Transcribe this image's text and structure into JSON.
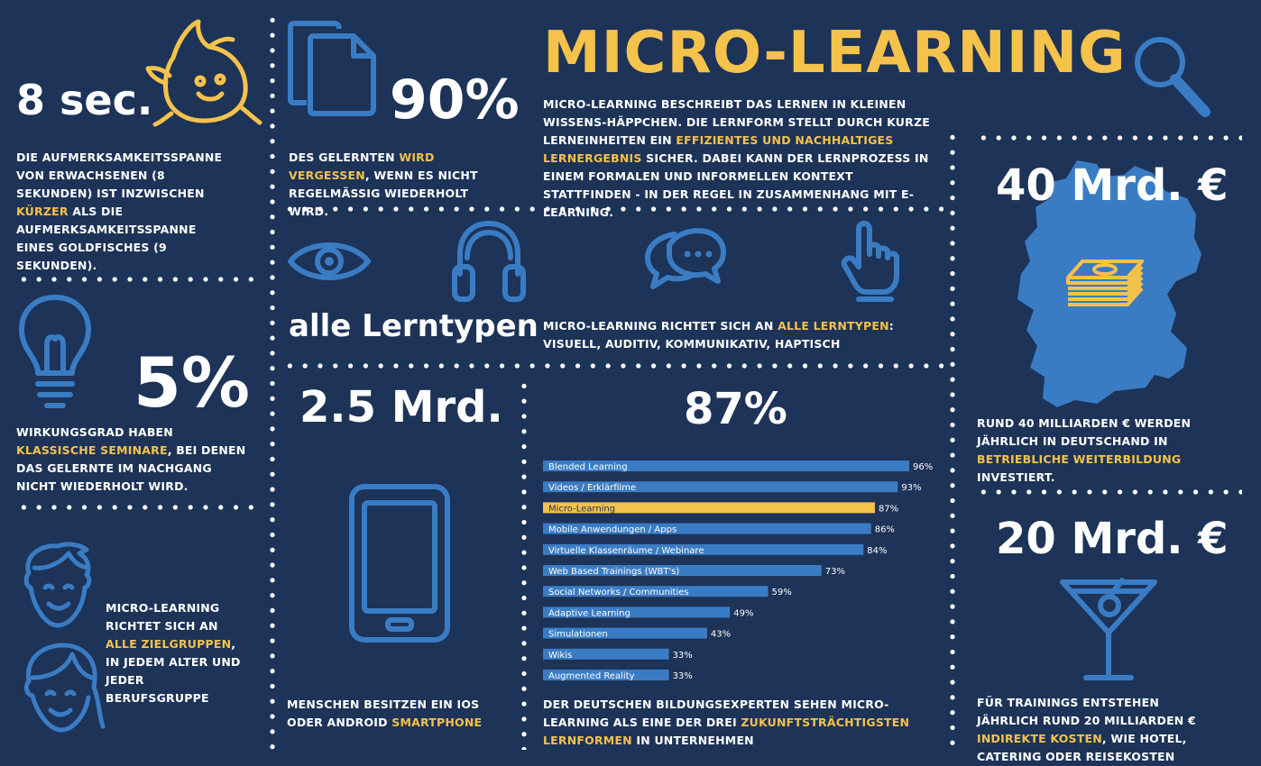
{
  "title": "MICRO-LEARNING",
  "intro": {
    "p1": "MICRO-LEARNING BESCHREIBT DAS LERNEN IN KLEINEN WISSENS-HÄPPCHEN. DIE LERNFORM STELLT DURCH KURZE LERNEINHEITEN EIN ",
    "hl": "EFFIZIENTES UND NACHHALTIGES LERNERGEBNIS",
    "p2": " SICHER. DABEI KANN DER LERNPROZESS IN EINEM FORMALEN UND INFORMELLEN KONTEXT STATTFINDEN - IN DER REGEL IN ZUSAMMENHANG MIT E-LEARNING."
  },
  "attention": {
    "big": "8 sec.",
    "t1": "DIE AUFMERKSAMKEITSSPANNE VON ERWACHSENEN (8 SEKUNDEN) IST INZWISCHEN ",
    "hl": "KÜRZER",
    "t2": " ALS DIE AUFMERKSAMKEITSSPANNE EINES GOLDFISCHES (9 SEKUNDEN)."
  },
  "forget": {
    "big": "90%",
    "t1": "DES GELERNTEN ",
    "hl": "WIRD VERGESSEN",
    "t2": ", WENN ES NICHT REGELMÄßIG WIEDERHOLT WIRD."
  },
  "seminar": {
    "big": "5%",
    "t1": "WIRKUNGSGRAD HABEN ",
    "hl": "KLASSISCHE SEMINARE",
    "t2": ", BEI DENEN DAS GELERNTE IM NACHGANG NICHT WIEDERHOLT WIRD."
  },
  "groups": {
    "t1": "MICRO-LEARNING RICHTET SICH AN ",
    "hl": "ALLE ZIELGRUPPEN",
    "t2": ", IN JEDEM ALTER UND JEDER BERUFSGRUPPE"
  },
  "lerntypen": {
    "big": "alle Lerntypen",
    "t1": "MICRO-LEARNING RICHTET SICH AN ",
    "hl": "ALLE LERNTYPEN",
    "t2": ": VISUELL, AUDITIV, KOMMUNIKATIV, HAPTISCH"
  },
  "smartphone": {
    "big": "2.5 Mrd.",
    "t1": "MENSCHEN BESITZEN EIN IOS ODER ANDROID ",
    "hl": "SMARTPHONE"
  },
  "experts": {
    "big": "87%",
    "t1": "DER DEUTSCHEN BILDUNGSEXPERTEN SEHEN MICRO-LEARNING ALS EINE DER DREI ",
    "hl": "ZUKUNFTSTRÄCHTIGSTEN LERNFORMEN",
    "t2": " IN UNTERNEHMEN"
  },
  "training": {
    "big": "40 Mrd. €",
    "t1": "RUND 40 MILLIARDEN € WERDEN JÄHRLICH IN DEUTSCHAND IN ",
    "hl": "BETRIEBLICHE WEITERBILDUNG",
    "t2": " INVESTIERT."
  },
  "costs": {
    "big": "20 Mrd. €",
    "t1": "FÜR TRAININGS ENTSTEHEN JÄHRLICH RUND 20 MILLIARDEN € ",
    "hl": "INDIREKTE KOSTEN",
    "t2": ", WIE HOTEL, CATERING ODER REISEKOSTEN"
  },
  "colors": {
    "background": "#1d3358",
    "accent": "#f5c24b",
    "icon": "#3a7cc4",
    "text": "#ffffff"
  },
  "icons": [
    "goldfish-icon",
    "documents-icon",
    "magnifier-icon",
    "lightbulb-icon",
    "eye-icon",
    "headphones-icon",
    "speech-bubbles-icon",
    "pointing-hand-icon",
    "germany-map-icon",
    "money-stack-icon",
    "male-face-icon",
    "female-face-icon",
    "smartphone-icon",
    "cocktail-glass-icon"
  ],
  "chart_data": {
    "type": "bar",
    "orientation": "horizontal",
    "categories": [
      "Blended Learning",
      "Videos / Erklärfilme",
      "Micro-Learning",
      "Mobile Anwendungen / Apps",
      "Virtuelle Klassenräume / Webinare",
      "Web Based Trainings (WBT's)",
      "Social Networks / Communities",
      "Adaptive Learning",
      "Simulationen",
      "Wikis",
      "Augmented Reality"
    ],
    "values": [
      96,
      93,
      87,
      86,
      84,
      73,
      59,
      49,
      43,
      33,
      33
    ],
    "value_labels": [
      "96%",
      "93%",
      "87%",
      "86%",
      "84%",
      "73%",
      "59%",
      "49%",
      "43%",
      "33%",
      "33%"
    ],
    "highlight_index": 2,
    "xlim": [
      0,
      100
    ],
    "grid": false
  }
}
